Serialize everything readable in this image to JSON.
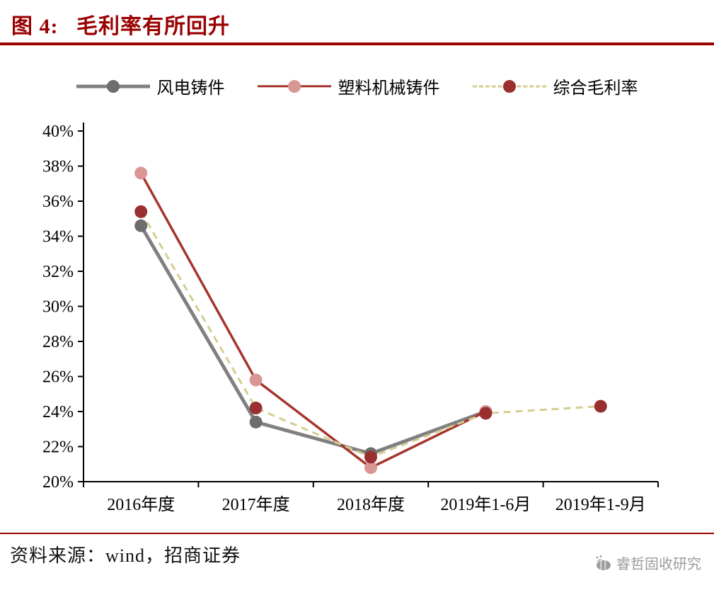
{
  "header": {
    "title": "图 4:   毛利率有所回升"
  },
  "colors": {
    "accent": "#9a0000",
    "text": "#000000",
    "watermark": "#9b9b9b"
  },
  "chart_data": {
    "type": "line",
    "title": "毛利率有所回升",
    "categories": [
      "2016年度",
      "2017年度",
      "2018年度",
      "2019年1-6月",
      "2019年1-9月"
    ],
    "series": [
      {
        "name": "风电铸件",
        "values": [
          34.6,
          23.4,
          21.6,
          24.0,
          null
        ],
        "line_color": "#808080",
        "marker_color": "#6d6d6d",
        "dashed": false,
        "line_width": 5
      },
      {
        "name": "塑料机械铸件",
        "values": [
          37.6,
          25.8,
          20.8,
          24.0,
          null
        ],
        "line_color": "#a6352c",
        "marker_color": "#d89795",
        "dashed": false,
        "line_width": 3.5
      },
      {
        "name": "综合毛利率",
        "values": [
          35.4,
          24.2,
          21.4,
          23.9,
          24.3
        ],
        "line_color": "#d5cd90",
        "marker_color": "#992f2f",
        "dashed": true,
        "line_width": 3
      }
    ],
    "ylim": [
      20,
      40
    ],
    "ytick_step": 2,
    "yticks": [
      "20%",
      "22%",
      "24%",
      "26%",
      "28%",
      "30%",
      "32%",
      "34%",
      "36%",
      "38%",
      "40%"
    ],
    "grid": false,
    "legend_position": "top"
  },
  "footer": {
    "source": "资料来源：wind，招商证券",
    "watermark": "睿哲固收研究"
  }
}
